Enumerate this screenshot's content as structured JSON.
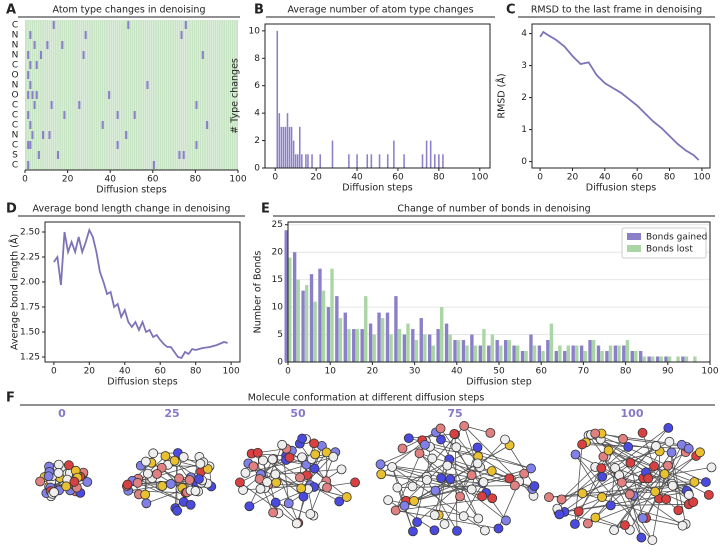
{
  "chart_data": [
    {
      "type": "raster",
      "panel": "A",
      "title": "Atom type changes in denoising",
      "xlabel": "Diffusion steps",
      "rows": [
        "C",
        "N",
        "N",
        "N",
        "C",
        "O",
        "N",
        "O",
        "C",
        "C",
        "C",
        "N",
        "C",
        "S",
        "C"
      ],
      "events": [
        [
          13,
          48,
          75
        ],
        [
          2,
          28,
          73
        ],
        [
          4,
          10,
          17
        ],
        [
          1,
          7,
          27,
          83
        ],
        [
          2,
          5
        ],
        [
          1
        ],
        [
          2,
          57
        ],
        [
          1,
          3,
          5,
          39
        ],
        [
          4,
          12,
          25,
          80
        ],
        [
          1,
          18,
          43,
          51
        ],
        [
          2,
          36,
          85
        ],
        [
          3,
          8,
          11,
          47
        ],
        [
          1,
          2,
          43,
          80
        ],
        [
          6,
          15,
          72,
          74
        ],
        [
          1,
          60
        ]
      ],
      "background_color": "#c6e3c3",
      "color": "#8a7fc8",
      "xlim": [
        0,
        100
      ],
      "xticks": [
        0,
        20,
        40,
        60,
        80,
        100
      ]
    },
    {
      "type": "bar",
      "panel": "B",
      "title": "Average number of atom type changes",
      "xlabel": "Diffusion steps",
      "ylabel": "# Type changes",
      "x": [
        1,
        2,
        3,
        4,
        5,
        6,
        7,
        8,
        9,
        10,
        11,
        12,
        13,
        15,
        16,
        18,
        22,
        28,
        36,
        40,
        45,
        47,
        51,
        55,
        58,
        63,
        72,
        74,
        76,
        78,
        80,
        82
      ],
      "values": [
        10,
        4,
        3,
        3,
        3,
        4,
        3,
        3,
        2,
        1,
        1,
        3,
        1,
        1,
        1,
        1,
        1,
        2,
        1,
        1,
        1,
        1,
        1,
        1,
        2,
        1,
        1,
        2,
        2,
        1,
        1,
        1
      ],
      "color": "#8a7fc8",
      "xlim": [
        -5,
        105
      ],
      "xticks": [
        0,
        20,
        40,
        60,
        80,
        100
      ],
      "ylim": [
        0,
        10.5
      ],
      "yticks": [
        0,
        2,
        4,
        6,
        8,
        10
      ]
    },
    {
      "type": "line",
      "panel": "C",
      "title": "RMSD to the last frame in denoising",
      "xlabel": "Diffusion steps",
      "ylabel": "RMSD (Å)",
      "x": [
        0,
        2,
        5,
        10,
        15,
        20,
        25,
        30,
        35,
        40,
        45,
        50,
        55,
        60,
        65,
        70,
        75,
        80,
        85,
        90,
        95,
        98
      ],
      "values": [
        3.9,
        4.05,
        3.95,
        3.8,
        3.6,
        3.3,
        3.05,
        3.1,
        2.7,
        2.45,
        2.3,
        2.15,
        1.95,
        1.75,
        1.5,
        1.25,
        1.05,
        0.8,
        0.55,
        0.35,
        0.2,
        0.05
      ],
      "color": "#7d73b8",
      "xlim": [
        -5,
        105
      ],
      "xticks": [
        0,
        20,
        40,
        60,
        80,
        100
      ],
      "ylim": [
        -0.2,
        4.3
      ],
      "yticks": [
        0,
        1,
        2,
        3,
        4
      ]
    },
    {
      "type": "line",
      "panel": "D",
      "title": "Average bond length change in denoising",
      "xlabel": "Diffusion steps",
      "ylabel": "Average bond length (Å)",
      "x": [
        0,
        2,
        4,
        6,
        8,
        10,
        12,
        14,
        16,
        18,
        20,
        22,
        24,
        26,
        28,
        30,
        32,
        34,
        36,
        38,
        40,
        42,
        44,
        46,
        48,
        50,
        52,
        54,
        56,
        58,
        60,
        62,
        64,
        66,
        68,
        70,
        72,
        74,
        76,
        78,
        80,
        84,
        88,
        92,
        96,
        98
      ],
      "values": [
        2.2,
        2.25,
        1.97,
        2.5,
        2.3,
        2.4,
        2.3,
        2.45,
        2.3,
        2.4,
        2.52,
        2.45,
        2.3,
        2.1,
        2.0,
        1.88,
        1.9,
        1.75,
        1.78,
        1.65,
        1.72,
        1.6,
        1.55,
        1.6,
        1.52,
        1.6,
        1.5,
        1.52,
        1.45,
        1.47,
        1.42,
        1.38,
        1.35,
        1.35,
        1.3,
        1.25,
        1.24,
        1.3,
        1.28,
        1.33,
        1.32,
        1.34,
        1.35,
        1.37,
        1.4,
        1.39
      ],
      "color": "#7d73b8",
      "xlim": [
        -5,
        105
      ],
      "xticks": [
        0,
        20,
        40,
        60,
        80,
        100
      ],
      "ylim": [
        1.2,
        2.6
      ],
      "yticks": [
        1.25,
        {
          "value": 1.5,
          "label": "1.50"
        },
        1.75,
        {
          "value": 2,
          "label": "2.00"
        },
        2.25,
        {
          "value": 2.5,
          "label": "2.50"
        }
      ]
    },
    {
      "type": "bar",
      "panel": "E",
      "title": "Change of number of bonds in denoising",
      "xlabel": "Diffusion step",
      "ylabel": "Number of Bonds",
      "x": [
        0,
        2,
        4,
        6,
        8,
        10,
        12,
        14,
        16,
        18,
        20,
        22,
        24,
        26,
        28,
        30,
        32,
        34,
        36,
        38,
        40,
        42,
        44,
        46,
        48,
        50,
        52,
        54,
        56,
        58,
        60,
        62,
        64,
        66,
        68,
        70,
        72,
        74,
        76,
        78,
        80,
        82,
        84,
        86,
        88,
        90,
        92,
        94,
        96
      ],
      "series": [
        {
          "name": "Bonds gained",
          "color": "#8a7fc8",
          "values": [
            24,
            20,
            13,
            16,
            17,
            10,
            12,
            9,
            6,
            6,
            7,
            9,
            9,
            12,
            5,
            6,
            8,
            5,
            6,
            7,
            4,
            4,
            5,
            3,
            3,
            4,
            4,
            3,
            2,
            5,
            3,
            4,
            2,
            2,
            3,
            3,
            4,
            3,
            2,
            3,
            3,
            2,
            2,
            1,
            1,
            1,
            0,
            1,
            0
          ]
        },
        {
          "name": "Bonds lost",
          "color": "#a9d6a4",
          "values": [
            19,
            15,
            14,
            11,
            13,
            17,
            8,
            6,
            6,
            12,
            5,
            8,
            5,
            6,
            7,
            4,
            5,
            3,
            10,
            5,
            4,
            3,
            3,
            6,
            5,
            3,
            4,
            3,
            2,
            3,
            2,
            7,
            3,
            3,
            3,
            2,
            4,
            2,
            3,
            3,
            4,
            2,
            1,
            1,
            1,
            1,
            1,
            1,
            1
          ]
        }
      ],
      "xlim": [
        0,
        100
      ],
      "xticks": [
        0,
        10,
        20,
        30,
        40,
        50,
        60,
        70,
        80,
        90,
        100
      ],
      "ylim": [
        0,
        25.5
      ],
      "yticks": [
        0,
        5,
        10,
        15,
        20,
        25
      ],
      "grid": true,
      "legend": "upper right"
    }
  ],
  "figure_f": {
    "panel": "F",
    "title": "Molecule conformation at different diffusion steps",
    "steps": [
      0,
      25,
      50,
      75,
      100
    ]
  }
}
